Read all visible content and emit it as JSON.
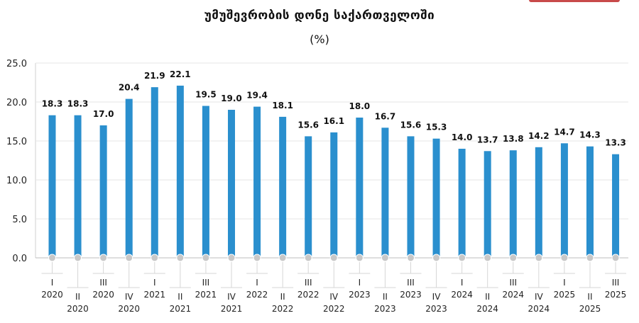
{
  "chart_title": "უმუშევრობის დონე საქართველოში",
  "chart_subtitle": "(%)",
  "chart_data": {
    "type": "bar",
    "title": "უმუშევრობის დონე საქართველოში",
    "subtitle": "(%)",
    "ylim": [
      0,
      25
    ],
    "yticks": [
      "0.0",
      "5.0",
      "10.0",
      "15.0",
      "20.0",
      "25.0"
    ],
    "grid": true,
    "bar_color": "#2a8fce",
    "categories": [
      {
        "quarter": "I",
        "year": "2020"
      },
      {
        "quarter": "II",
        "year": "2020"
      },
      {
        "quarter": "III",
        "year": "2020"
      },
      {
        "quarter": "IV",
        "year": "2020"
      },
      {
        "quarter": "I",
        "year": "2021"
      },
      {
        "quarter": "II",
        "year": "2021"
      },
      {
        "quarter": "III",
        "year": "2021"
      },
      {
        "quarter": "IV",
        "year": "2021"
      },
      {
        "quarter": "I",
        "year": "2022"
      },
      {
        "quarter": "II",
        "year": "2022"
      },
      {
        "quarter": "III",
        "year": "2022"
      },
      {
        "quarter": "IV",
        "year": "2022"
      },
      {
        "quarter": "I",
        "year": "2023"
      },
      {
        "quarter": "II",
        "year": "2023"
      },
      {
        "quarter": "III",
        "year": "2023"
      },
      {
        "quarter": "IV",
        "year": "2023"
      },
      {
        "quarter": "I",
        "year": "2024"
      },
      {
        "quarter": "II",
        "year": "2024"
      },
      {
        "quarter": "III",
        "year": "2024"
      },
      {
        "quarter": "IV",
        "year": "2024"
      },
      {
        "quarter": "I",
        "year": "2025"
      },
      {
        "quarter": "II",
        "year": "2025"
      },
      {
        "quarter": "III",
        "year": "2025"
      }
    ],
    "values": [
      18.3,
      18.3,
      17.0,
      20.4,
      21.9,
      22.1,
      19.5,
      19.0,
      19.4,
      18.1,
      15.6,
      16.1,
      18.0,
      16.7,
      15.6,
      15.3,
      14.0,
      13.7,
      13.8,
      14.2,
      14.7,
      14.3,
      13.3
    ],
    "value_labels": [
      "18.3",
      "18.3",
      "17.0",
      "20.4",
      "21.9",
      "22.1",
      "19.5",
      "19.0",
      "19.4",
      "18.1",
      "15.6",
      "16.1",
      "18.0",
      "16.7",
      "15.6",
      "15.3",
      "14.0",
      "13.7",
      "13.8",
      "14.2",
      "14.7",
      "14.3",
      "13.3"
    ]
  }
}
